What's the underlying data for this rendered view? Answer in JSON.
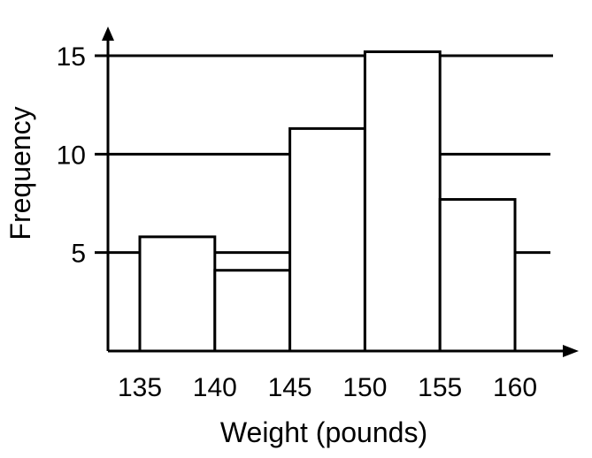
{
  "chart_data": {
    "type": "bar",
    "title": "",
    "xlabel": "Weight (pounds)",
    "ylabel": "Frequency",
    "bins": [
      {
        "start": 135,
        "end": 140,
        "value": 5.8
      },
      {
        "start": 140,
        "end": 145,
        "value": 4.1
      },
      {
        "start": 145,
        "end": 150,
        "value": 11.3
      },
      {
        "start": 150,
        "end": 155,
        "value": 15.2
      },
      {
        "start": 155,
        "end": 160,
        "value": 7.7
      }
    ],
    "x_ticks": [
      "135",
      "140",
      "145",
      "150",
      "155",
      "160"
    ],
    "x_tick_values": [
      135,
      140,
      145,
      150,
      155,
      160
    ],
    "y_ticks": [
      "5",
      "10",
      "15"
    ],
    "y_tick_values": [
      5,
      10,
      15
    ],
    "xlim": [
      133,
      162.5
    ],
    "ylim": [
      0,
      17
    ],
    "grid": true,
    "legend": "none"
  }
}
